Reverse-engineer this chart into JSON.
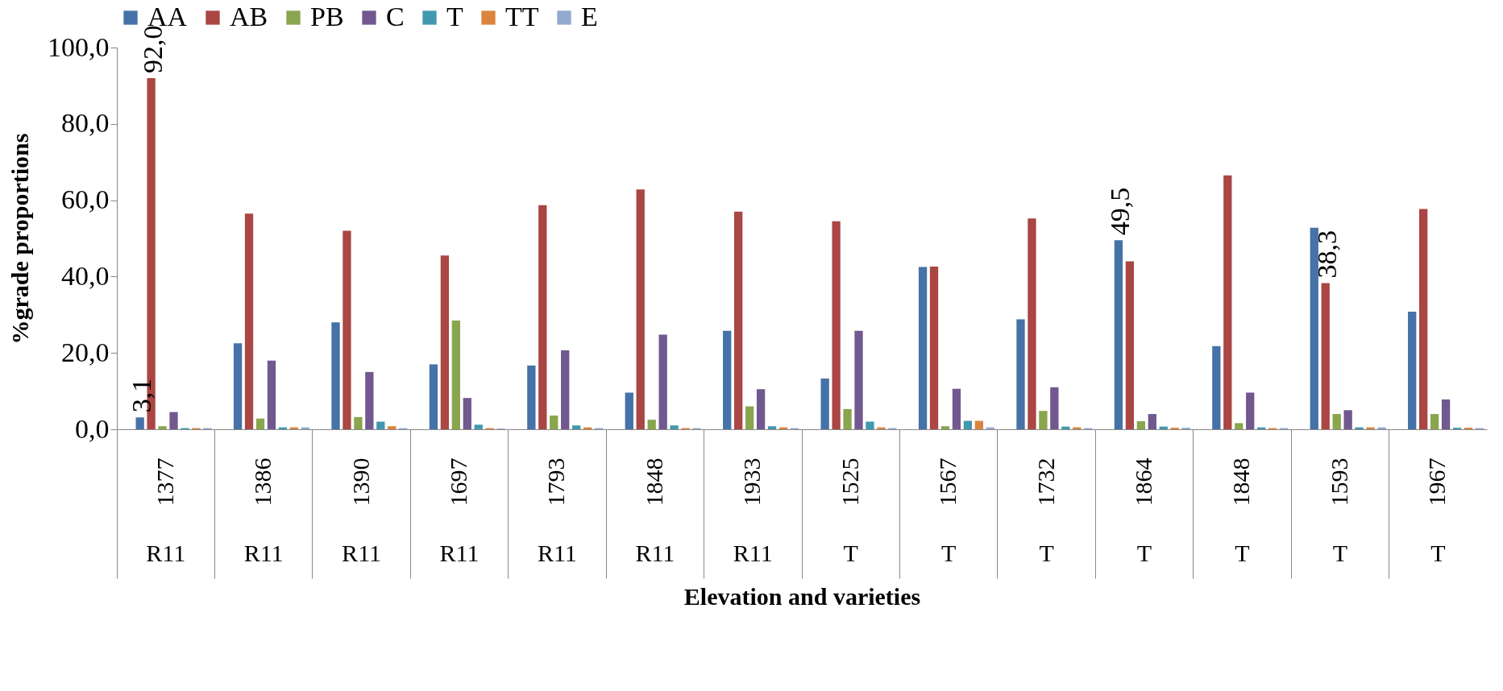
{
  "chart_data": {
    "type": "bar",
    "xlabel": "Elevation and varieties",
    "ylabel": "%grade proportions",
    "categories": [
      "1377",
      "1386",
      "1390",
      "1697",
      "1793",
      "1848",
      "1933",
      "1525",
      "1567",
      "1732",
      "1864",
      "1848",
      "1593",
      "1967"
    ],
    "series": [
      {
        "name": "AA",
        "color": "#4572a7",
        "values": [
          3.1,
          22.5,
          28,
          17,
          16.7,
          9.6,
          25.8,
          13.3,
          42.5,
          28.8,
          49.5,
          21.8,
          52.8,
          30.8
        ],
        "value_labels": [
          "3,1",
          null,
          null,
          null,
          null,
          null,
          null,
          null,
          null,
          null,
          "49,5",
          null,
          null,
          null
        ]
      },
      {
        "name": "AB",
        "color": "#aa4643",
        "values": [
          92.0,
          56.5,
          52,
          45.5,
          58.7,
          62.8,
          57,
          54.5,
          42.6,
          55.2,
          44,
          66.5,
          38.3,
          57.7
        ],
        "value_labels": [
          "92,0",
          null,
          null,
          null,
          null,
          null,
          null,
          null,
          null,
          null,
          null,
          null,
          "38,3",
          null
        ]
      },
      {
        "name": "PB",
        "color": "#89a54e",
        "values": [
          0.8,
          2.8,
          3.2,
          28.5,
          3.6,
          2.5,
          6,
          5.3,
          0.8,
          4.8,
          2.1,
          1.6,
          4,
          4
        ]
      },
      {
        "name": "C",
        "color": "#71588f",
        "values": [
          4.5,
          18,
          15,
          8.2,
          20.7,
          24.8,
          10.5,
          25.8,
          10.6,
          11,
          4,
          9.6,
          5,
          7.8
        ]
      },
      {
        "name": "T",
        "color": "#4198af",
        "values": [
          0.3,
          0.5,
          2,
          1.2,
          1,
          1,
          0.8,
          2,
          2.2,
          0.7,
          0.7,
          0.5,
          0.5,
          0.4
        ]
      },
      {
        "name": "TT",
        "color": "#db843d",
        "values": [
          0.3,
          0.5,
          0.8,
          0.3,
          0.5,
          0.3,
          0.5,
          0.5,
          2.2,
          0.5,
          0.4,
          0.3,
          0.5,
          0.4
        ]
      },
      {
        "name": "E",
        "color": "#93a9cf",
        "values": [
          0.3,
          0.5,
          0.3,
          0.2,
          0.3,
          0.3,
          0.3,
          0.3,
          0.5,
          0.3,
          0.4,
          0.3,
          0.5,
          0.3
        ]
      }
    ],
    "annotations": [
      "R11",
      "R11",
      "R11",
      "R11",
      "R11",
      "R11",
      "R11",
      "T",
      "T",
      "T",
      "T",
      "T",
      "T",
      "T"
    ],
    "ylim": [
      0,
      100
    ],
    "yticks": [
      {
        "value": 0,
        "label": "0,0"
      },
      {
        "value": 20,
        "label": "20,0"
      },
      {
        "value": 40,
        "label": "40,0"
      },
      {
        "value": 60,
        "label": "60,0"
      },
      {
        "value": 80,
        "label": "80,0"
      },
      {
        "value": 100,
        "label": "100,0"
      }
    ],
    "grid": false,
    "legend": "top"
  }
}
